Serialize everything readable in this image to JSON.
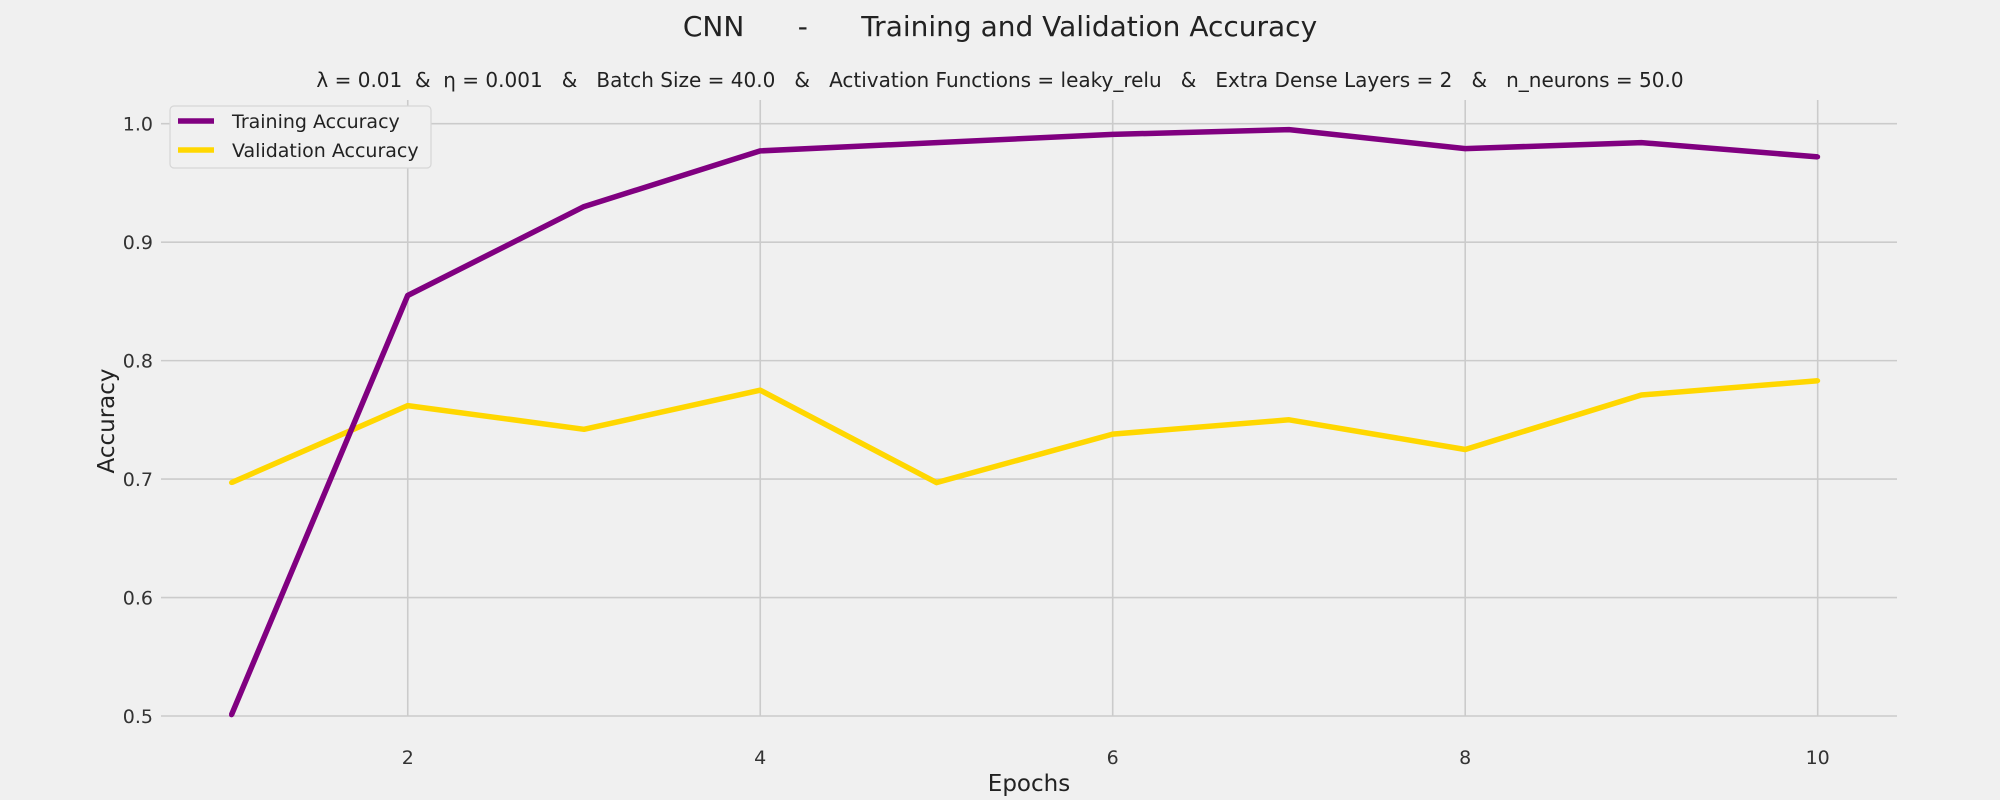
{
  "chart_data": {
    "type": "line",
    "title": "CNN      -      Training and Validation Accuracy",
    "subtitle": "λ = 0.01  &  η = 0.001   &   Batch Size = 40.0   &   Activation Functions = leaky_relu   &   Extra Dense Layers = 2   &   n_neurons = 50.0",
    "xlabel": "Epochs",
    "ylabel": "Accuracy",
    "xlim": [
      0.6,
      10.45
    ],
    "ylim": [
      0.5,
      1.02
    ],
    "xticks": [
      2,
      4,
      6,
      8,
      10
    ],
    "yticks": [
      0.5,
      0.6,
      0.7,
      0.8,
      0.9,
      1.0
    ],
    "grid": true,
    "legend_position": "top-left",
    "x": [
      1,
      2,
      3,
      4,
      5,
      6,
      7,
      8,
      9,
      10
    ],
    "series": [
      {
        "name": "Training Accuracy",
        "color": "#800080",
        "values": [
          0.501,
          0.855,
          0.93,
          0.977,
          0.984,
          0.991,
          0.995,
          0.979,
          0.984,
          0.972
        ]
      },
      {
        "name": "Validation Accuracy",
        "color": "#FFD700",
        "values": [
          0.697,
          0.762,
          0.742,
          0.775,
          0.697,
          0.738,
          0.75,
          0.725,
          0.771,
          0.783
        ]
      }
    ]
  }
}
